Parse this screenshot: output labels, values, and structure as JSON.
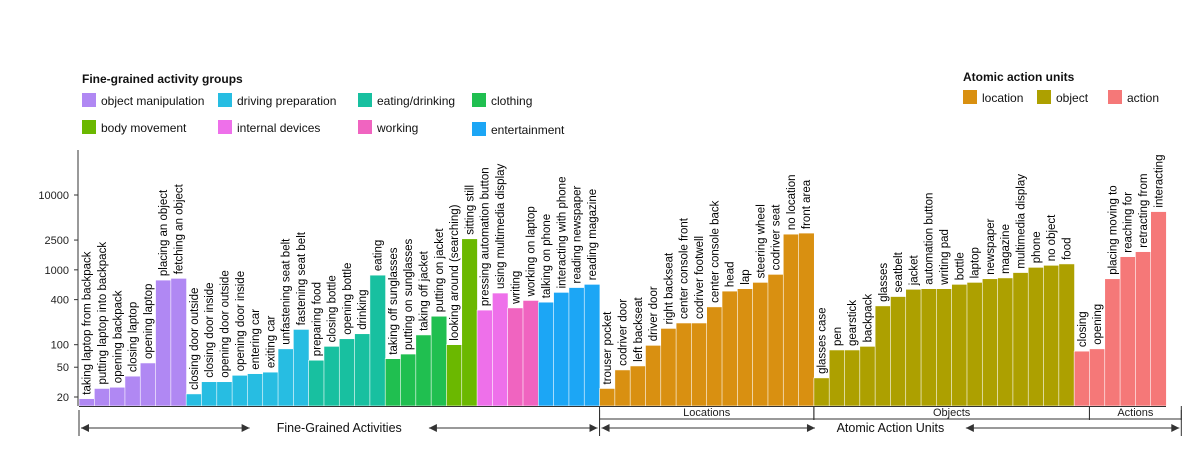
{
  "chart_data": {
    "type": "bar",
    "yscale": "log",
    "ylim": [
      15,
      20000
    ],
    "yticks": [
      20,
      50,
      100,
      400,
      1000,
      2500,
      10000
    ],
    "ytick_labels": [
      "20",
      "50",
      "100",
      "400",
      "1000",
      "2500",
      "10000"
    ],
    "legends": [
      {
        "title": "Fine-grained activity groups",
        "placement": "top-left",
        "entries": [
          {
            "key": "object_manipulation",
            "label": "object manipulation",
            "color": "#b088f3"
          },
          {
            "key": "driving_preparation",
            "label": "driving preparation",
            "color": "#27bde2"
          },
          {
            "key": "eating_drinking",
            "label": "eating/drinking",
            "color": "#18c0a0"
          },
          {
            "key": "clothing",
            "label": "clothing",
            "color": "#20bf50"
          },
          {
            "key": "body_movement",
            "label": "body movement",
            "color": "#6bb800"
          },
          {
            "key": "internal_devices",
            "label": "internal devices",
            "color": "#ee70ea"
          },
          {
            "key": "working",
            "label": "working",
            "color": "#f064c0"
          },
          {
            "key": "entertainment",
            "label": "entertainment",
            "color": "#1ca6f5"
          }
        ]
      },
      {
        "title": "Atomic action units",
        "placement": "top-right",
        "entries": [
          {
            "key": "location",
            "label": "location",
            "color": "#d99011"
          },
          {
            "key": "object",
            "label": "object",
            "color": "#ada000"
          },
          {
            "key": "action",
            "label": "action",
            "color": "#f57878"
          }
        ]
      }
    ],
    "bars": [
      {
        "label": "taking laptop from backpack",
        "value": 19,
        "group": "object_manipulation"
      },
      {
        "label": "putting laptop into backpack",
        "value": 26,
        "group": "object_manipulation"
      },
      {
        "label": "opening backpack",
        "value": 27,
        "group": "object_manipulation"
      },
      {
        "label": "closing laptop",
        "value": 38,
        "group": "object_manipulation"
      },
      {
        "label": "opening laptop",
        "value": 57,
        "group": "object_manipulation"
      },
      {
        "label": "placing an object",
        "value": 730,
        "group": "object_manipulation"
      },
      {
        "label": "fetching an object",
        "value": 770,
        "group": "object_manipulation"
      },
      {
        "label": "closing door outside",
        "value": 22,
        "group": "driving_preparation"
      },
      {
        "label": "closing door inside",
        "value": 32,
        "group": "driving_preparation"
      },
      {
        "label": "opening door outside",
        "value": 32,
        "group": "driving_preparation"
      },
      {
        "label": "opening door inside",
        "value": 39,
        "group": "driving_preparation"
      },
      {
        "label": "entering car",
        "value": 41,
        "group": "driving_preparation"
      },
      {
        "label": "exiting car",
        "value": 43,
        "group": "driving_preparation"
      },
      {
        "label": "unfastening seat belt",
        "value": 88,
        "group": "driving_preparation"
      },
      {
        "label": "fastening seat belt",
        "value": 160,
        "group": "driving_preparation"
      },
      {
        "label": "preparing food",
        "value": 62,
        "group": "eating_drinking"
      },
      {
        "label": "closing bottle",
        "value": 95,
        "group": "eating_drinking"
      },
      {
        "label": "opening bottle",
        "value": 120,
        "group": "eating_drinking"
      },
      {
        "label": "drinking",
        "value": 140,
        "group": "eating_drinking"
      },
      {
        "label": "eating",
        "value": 850,
        "group": "eating_drinking"
      },
      {
        "label": "taking off sunglasses",
        "value": 65,
        "group": "clothing"
      },
      {
        "label": "putting on sunglasses",
        "value": 75,
        "group": "clothing"
      },
      {
        "label": "taking off jacket",
        "value": 135,
        "group": "clothing"
      },
      {
        "label": "putting on jacket",
        "value": 240,
        "group": "clothing"
      },
      {
        "label": "looking around (searching)",
        "value": 100,
        "group": "body_movement"
      },
      {
        "label": "sitting still",
        "value": 2600,
        "group": "body_movement"
      },
      {
        "label": "pressing automation button",
        "value": 290,
        "group": "internal_devices"
      },
      {
        "label": "using multimedia display",
        "value": 490,
        "group": "internal_devices"
      },
      {
        "label": "writing",
        "value": 310,
        "group": "working"
      },
      {
        "label": "working on laptop",
        "value": 390,
        "group": "working"
      },
      {
        "label": "talking on phone",
        "value": 370,
        "group": "entertainment"
      },
      {
        "label": "interacting with phone",
        "value": 500,
        "group": "entertainment"
      },
      {
        "label": "reading newspaper",
        "value": 580,
        "group": "entertainment"
      },
      {
        "label": "reading magazine",
        "value": 640,
        "group": "entertainment"
      },
      {
        "label": "trouser pocket",
        "value": 26,
        "group": "location"
      },
      {
        "label": "codriver door",
        "value": 46,
        "group": "location"
      },
      {
        "label": "left backseat",
        "value": 52,
        "group": "location"
      },
      {
        "label": "driver door",
        "value": 98,
        "group": "location"
      },
      {
        "label": "right backseat",
        "value": 165,
        "group": "location"
      },
      {
        "label": "center console front",
        "value": 195,
        "group": "location"
      },
      {
        "label": "codriver footwell",
        "value": 195,
        "group": "location"
      },
      {
        "label": "center console back",
        "value": 320,
        "group": "location"
      },
      {
        "label": "head",
        "value": 520,
        "group": "location"
      },
      {
        "label": "lap",
        "value": 560,
        "group": "location"
      },
      {
        "label": "steering wheel",
        "value": 680,
        "group": "location"
      },
      {
        "label": "codriver seat",
        "value": 870,
        "group": "location"
      },
      {
        "label": "no location",
        "value": 3000,
        "group": "location"
      },
      {
        "label": "front area",
        "value": 3100,
        "group": "location"
      },
      {
        "label": "glasses case",
        "value": 36,
        "group": "object"
      },
      {
        "label": "pen",
        "value": 85,
        "group": "object"
      },
      {
        "label": "gearstick",
        "value": 85,
        "group": "object"
      },
      {
        "label": "backpack",
        "value": 95,
        "group": "object"
      },
      {
        "label": "glasses",
        "value": 330,
        "group": "object"
      },
      {
        "label": "seatbelt",
        "value": 440,
        "group": "object"
      },
      {
        "label": "jacket",
        "value": 550,
        "group": "object"
      },
      {
        "label": "automation button",
        "value": 560,
        "group": "object"
      },
      {
        "label": "writing pad",
        "value": 560,
        "group": "object"
      },
      {
        "label": "bottle",
        "value": 640,
        "group": "object"
      },
      {
        "label": "laptop",
        "value": 680,
        "group": "object"
      },
      {
        "label": "newspaper",
        "value": 760,
        "group": "object"
      },
      {
        "label": "magazine",
        "value": 780,
        "group": "object"
      },
      {
        "label": "multimedia display",
        "value": 920,
        "group": "object"
      },
      {
        "label": "phone",
        "value": 1080,
        "group": "object"
      },
      {
        "label": "no object",
        "value": 1150,
        "group": "object"
      },
      {
        "label": "food",
        "value": 1200,
        "group": "object"
      },
      {
        "label": "closing",
        "value": 82,
        "group": "action"
      },
      {
        "label": "opening",
        "value": 88,
        "group": "action"
      },
      {
        "label": "placing moving to",
        "value": 760,
        "group": "action"
      },
      {
        "label": "reaching for",
        "value": 1500,
        "group": "action"
      },
      {
        "label": "retracting from",
        "value": 1750,
        "group": "action"
      },
      {
        "label": "interacting",
        "value": 6000,
        "group": "action"
      }
    ],
    "group_labels": [
      {
        "label": "Locations",
        "first": 34,
        "last": 47
      },
      {
        "label": "Objects",
        "first": 48,
        "last": 65
      },
      {
        "label": "Actions",
        "first": 66,
        "last": 71
      }
    ],
    "section_labels": [
      {
        "label": "Fine-Grained Activities",
        "first": 0,
        "last": 33
      },
      {
        "label": "Atomic Action Units",
        "first": 34,
        "last": 71
      }
    ]
  }
}
